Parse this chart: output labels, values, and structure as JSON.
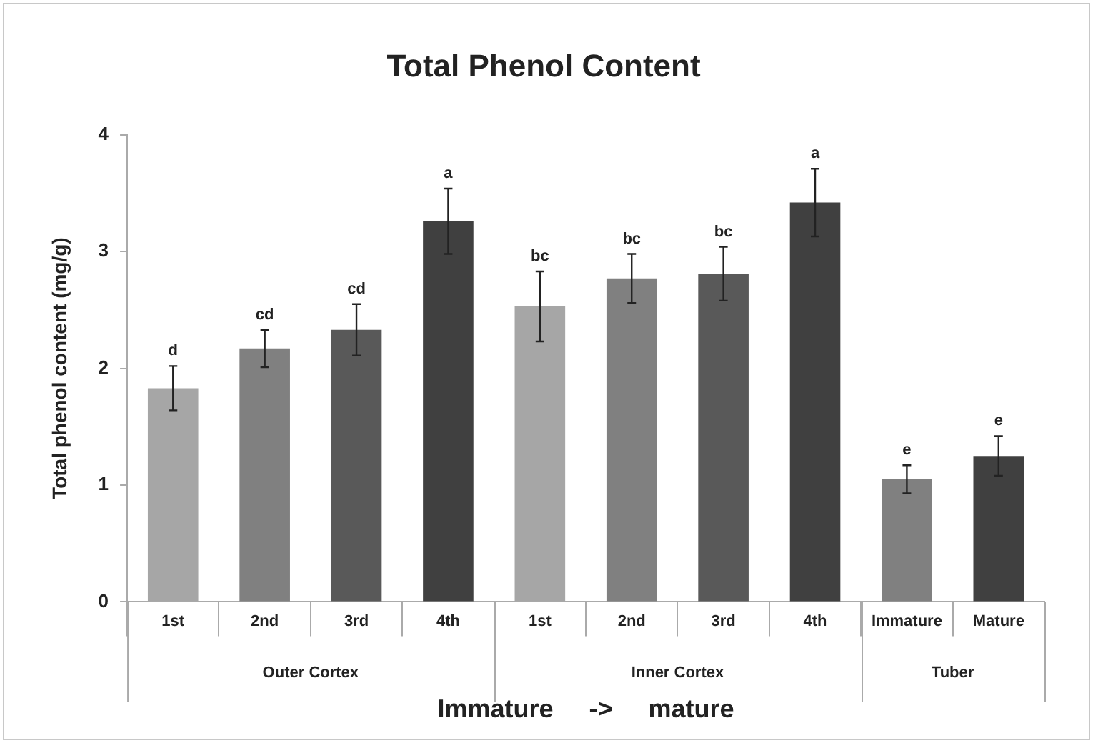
{
  "chart_data": {
    "type": "bar",
    "title": "Total Phenol Content",
    "xlabel": "Immature     ->     mature",
    "ylabel": "Total phenol content (mg/g)",
    "categories": [
      "1st",
      "2nd",
      "3rd",
      "4th",
      "1st",
      "2nd",
      "3rd",
      "4th",
      "Immature",
      "Mature"
    ],
    "values": [
      1.83,
      2.17,
      2.33,
      3.26,
      2.53,
      2.77,
      2.81,
      3.42,
      1.05,
      1.25
    ],
    "errors": [
      0.19,
      0.16,
      0.22,
      0.28,
      0.3,
      0.21,
      0.23,
      0.29,
      0.12,
      0.17
    ],
    "value_labels": [
      "d",
      "cd",
      "cd",
      "a",
      "bc",
      "bc",
      "bc",
      "a",
      "e",
      "e"
    ],
    "colors": [
      "#a6a6a6",
      "#808080",
      "#595959",
      "#404040",
      "#a6a6a6",
      "#808080",
      "#595959",
      "#404040",
      "#808080",
      "#404040"
    ],
    "annotations": [
      "Outer Cortex",
      "Inner Cortex",
      "Tuber"
    ],
    "ylim": [
      0,
      4
    ],
    "yticks": [
      0,
      1,
      2,
      3,
      4
    ],
    "grid": false,
    "legend": false
  }
}
